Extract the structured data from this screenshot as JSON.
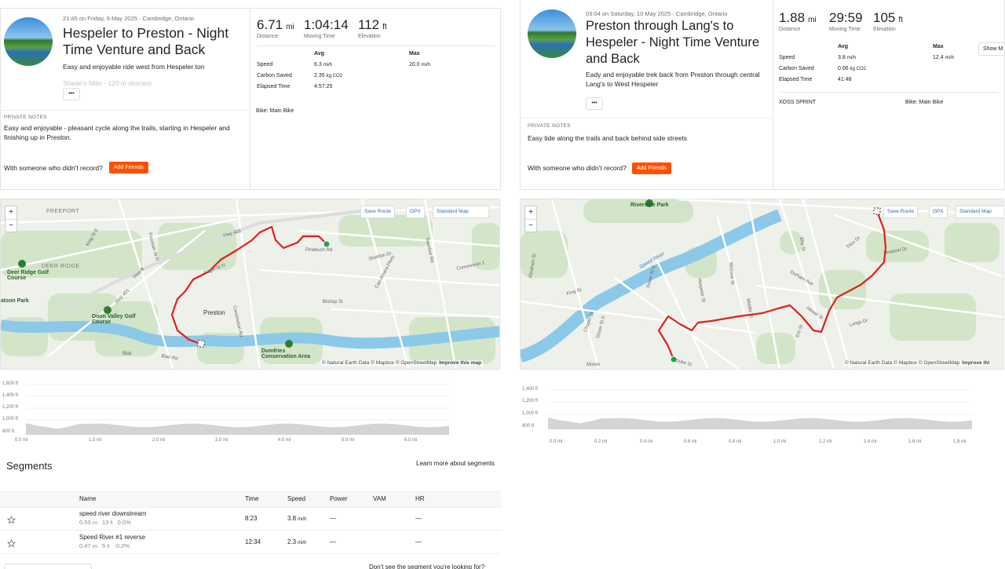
{
  "activities": [
    {
      "datetime": "21:45 on Friday, 9 May 2025 · Cambridge, Ontario",
      "title": "Hespeler to Preston - Night Time Venture and Back",
      "description": "Easy and enjoyable ride west from Hespeler ton",
      "description_more": "Shade's Mills - 120 m descent",
      "more_button": "•••",
      "notes_label": "PRIVATE NOTES",
      "notes": "Easy and enjoyable - pleasant cycle along the trails, starting in Hespeler and finishing up in Preston.",
      "with_someone": "With someone who didn't record?",
      "add_friends": "Add Friends",
      "stats": [
        {
          "value": "6.71",
          "unit": "mi",
          "label": "Distance"
        },
        {
          "value": "1:04:14",
          "label": "Moving Time"
        },
        {
          "value": "112",
          "unit": "ft",
          "label": "Elevation"
        }
      ],
      "table_header": [
        "Avg",
        "Max"
      ],
      "table_rows": [
        {
          "label": "Speed",
          "avg": "6.3",
          "avg_unit": "mi/h",
          "max": "20.0",
          "max_unit": "mi/h"
        },
        {
          "label": "Carbon Saved",
          "avg": "2.35",
          "avg_unit": "kg CO2"
        },
        {
          "label": "Elapsed Time",
          "avg": "4:57:25"
        }
      ],
      "bike": "Bike: Main Bike",
      "map": {
        "zoom_in": "+",
        "zoom_out": "−",
        "save_route": "Save Route",
        "gpx": "GPX",
        "map_style": "Standard Map",
        "attribution": "© Natural Earth Data © Mapbox © OpenStreetMap",
        "improve": "Improve this map",
        "labels": [
          "FREEPORT",
          "King St E",
          "Fountain St N",
          "Hwy 8",
          "Hwy 401",
          "DEER RIDGE",
          "Deer Ridge Golf Course",
          "atson Park",
          "Doon Valley Golf Course",
          "Eagle St N",
          "Preston",
          "Hwy 401",
          "Pinebush Rd",
          "Sheldon Dr",
          "Concession Rd",
          "Bishop St",
          "Can-Amera Pkwy",
          "Dumfries Conservation Area",
          "Blair Rd",
          "Blair",
          "Concession 1",
          "Townline Rd"
        ]
      },
      "elevation": {
        "yticks": [
          "1,600 ft",
          "1,400 ft",
          "1,200 ft",
          "1,000 ft",
          "800 ft"
        ],
        "xticks": [
          "0.0 mi",
          "1.0 mi",
          "2.0 mi",
          "3.0 mi",
          "4.0 mi",
          "5.0 mi",
          "6.0 mi"
        ]
      }
    },
    {
      "datetime": "03:04 on Saturday, 10 May 2025 · Cambridge, Ontario",
      "title": "Preston through Lang's to Hespeler - Night Time Venture and Back",
      "description": "Eady and enjoyable trek back from Preston through central Lang's to West Hespeler",
      "more_button": "•••",
      "notes_label": "PRIVATE NOTES",
      "notes": "Easy tide along the trails and back behind side streets",
      "with_someone": "With someone who didn't record?",
      "add_friends": "Add Friends",
      "stats": [
        {
          "value": "1.88",
          "unit": "mi",
          "label": "Distance"
        },
        {
          "value": "29:59",
          "label": "Moving Time"
        },
        {
          "value": "105",
          "unit": "ft",
          "label": "Elevation"
        }
      ],
      "table_header": [
        "Avg",
        "Max"
      ],
      "table_rows": [
        {
          "label": "Speed",
          "avg": "3.8",
          "avg_unit": "mi/h",
          "max": "12.4",
          "max_unit": "mi/h"
        },
        {
          "label": "Carbon Saved",
          "avg": "0.66",
          "avg_unit": "kg CO2"
        },
        {
          "label": "Elapsed Time",
          "avg": "41:48"
        }
      ],
      "show_more": "Show M",
      "device": "XOSS SPRINT",
      "bike": "Bike: Main Bike",
      "map": {
        "zoom_in": "+",
        "zoom_out": "−",
        "save_route": "Save Route",
        "gpx": "GPX",
        "map_style": "Standard Map",
        "attribution": "© Natural Earth Data © Mapbox © OpenStreetMap",
        "improve": "Improve thi",
        "labels": [
          "Riverside Park",
          "Speed River",
          "King St",
          "Abraham St",
          "Chopin Dr",
          "Dover St S",
          "Dover St N",
          "Duke St",
          "Hespeler St",
          "Melrose St",
          "Middle St",
          "Eby St",
          "Durham Ave",
          "Trico Dr",
          "Newport Dr",
          "Hewat St",
          "Langs Dr",
          "Erb St",
          "Moore"
        ]
      },
      "elevation": {
        "yticks": [
          "1,400 ft",
          "1,200 ft",
          "1,000 ft",
          "800 ft"
        ],
        "xticks": [
          "0.0 mi",
          "0.2 mi",
          "0.4 mi",
          "0.6 mi",
          "0.8 mi",
          "1.0 mi",
          "1.2 mi",
          "1.4 mi",
          "1.6 mi",
          "1.8 mi"
        ]
      }
    }
  ],
  "segments": {
    "title": "Segments",
    "learn_more": "Learn more about segments",
    "headers": [
      "Name",
      "Time",
      "Speed",
      "Power",
      "VAM",
      "HR"
    ],
    "rows": [
      {
        "name": "speed river downstream",
        "distance": "0.53",
        "distance_unit": "mi",
        "elevation": "13",
        "elevation_unit": "ft",
        "grade": "0.0%",
        "time": "8:23",
        "speed": "3.8",
        "speed_unit": "mi/h",
        "power": "—",
        "hr": "—"
      },
      {
        "name": "Speed River #1 reverse",
        "distance": "0.47",
        "distance_unit": "mi",
        "elevation": "5",
        "elevation_unit": "ft",
        "grade": "-0.2%",
        "time": "12:34",
        "speed": "2.3",
        "speed_unit": "mi/h",
        "power": "—",
        "hr": "—"
      }
    ],
    "footer": "Don't see the segment you're looking for?"
  }
}
